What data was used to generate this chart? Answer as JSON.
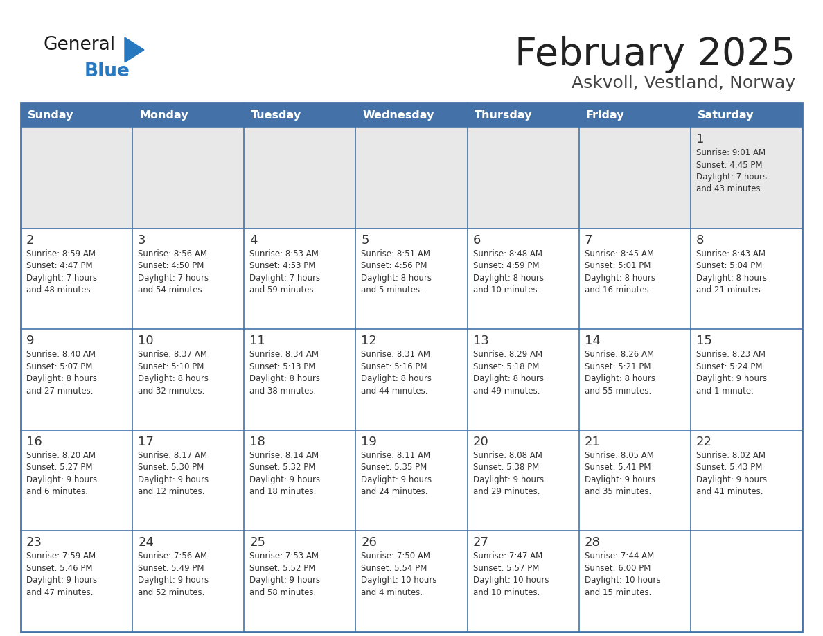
{
  "title": "February 2025",
  "subtitle": "Askvoll, Vestland, Norway",
  "days_of_week": [
    "Sunday",
    "Monday",
    "Tuesday",
    "Wednesday",
    "Thursday",
    "Friday",
    "Saturday"
  ],
  "header_bg": "#4472a8",
  "header_text": "#ffffff",
  "cell_bg_week1": "#e8e8e8",
  "cell_bg": "#ffffff",
  "cell_border": "#4472a8",
  "day_number_color": "#333333",
  "info_text_color": "#333333",
  "title_color": "#222222",
  "subtitle_color": "#444444",
  "logo_general_color": "#1a1a1a",
  "logo_blue_color": "#2878c0",
  "weeks": [
    [
      {
        "day": null,
        "info": ""
      },
      {
        "day": null,
        "info": ""
      },
      {
        "day": null,
        "info": ""
      },
      {
        "day": null,
        "info": ""
      },
      {
        "day": null,
        "info": ""
      },
      {
        "day": null,
        "info": ""
      },
      {
        "day": 1,
        "info": "Sunrise: 9:01 AM\nSunset: 4:45 PM\nDaylight: 7 hours\nand 43 minutes."
      }
    ],
    [
      {
        "day": 2,
        "info": "Sunrise: 8:59 AM\nSunset: 4:47 PM\nDaylight: 7 hours\nand 48 minutes."
      },
      {
        "day": 3,
        "info": "Sunrise: 8:56 AM\nSunset: 4:50 PM\nDaylight: 7 hours\nand 54 minutes."
      },
      {
        "day": 4,
        "info": "Sunrise: 8:53 AM\nSunset: 4:53 PM\nDaylight: 7 hours\nand 59 minutes."
      },
      {
        "day": 5,
        "info": "Sunrise: 8:51 AM\nSunset: 4:56 PM\nDaylight: 8 hours\nand 5 minutes."
      },
      {
        "day": 6,
        "info": "Sunrise: 8:48 AM\nSunset: 4:59 PM\nDaylight: 8 hours\nand 10 minutes."
      },
      {
        "day": 7,
        "info": "Sunrise: 8:45 AM\nSunset: 5:01 PM\nDaylight: 8 hours\nand 16 minutes."
      },
      {
        "day": 8,
        "info": "Sunrise: 8:43 AM\nSunset: 5:04 PM\nDaylight: 8 hours\nand 21 minutes."
      }
    ],
    [
      {
        "day": 9,
        "info": "Sunrise: 8:40 AM\nSunset: 5:07 PM\nDaylight: 8 hours\nand 27 minutes."
      },
      {
        "day": 10,
        "info": "Sunrise: 8:37 AM\nSunset: 5:10 PM\nDaylight: 8 hours\nand 32 minutes."
      },
      {
        "day": 11,
        "info": "Sunrise: 8:34 AM\nSunset: 5:13 PM\nDaylight: 8 hours\nand 38 minutes."
      },
      {
        "day": 12,
        "info": "Sunrise: 8:31 AM\nSunset: 5:16 PM\nDaylight: 8 hours\nand 44 minutes."
      },
      {
        "day": 13,
        "info": "Sunrise: 8:29 AM\nSunset: 5:18 PM\nDaylight: 8 hours\nand 49 minutes."
      },
      {
        "day": 14,
        "info": "Sunrise: 8:26 AM\nSunset: 5:21 PM\nDaylight: 8 hours\nand 55 minutes."
      },
      {
        "day": 15,
        "info": "Sunrise: 8:23 AM\nSunset: 5:24 PM\nDaylight: 9 hours\nand 1 minute."
      }
    ],
    [
      {
        "day": 16,
        "info": "Sunrise: 8:20 AM\nSunset: 5:27 PM\nDaylight: 9 hours\nand 6 minutes."
      },
      {
        "day": 17,
        "info": "Sunrise: 8:17 AM\nSunset: 5:30 PM\nDaylight: 9 hours\nand 12 minutes."
      },
      {
        "day": 18,
        "info": "Sunrise: 8:14 AM\nSunset: 5:32 PM\nDaylight: 9 hours\nand 18 minutes."
      },
      {
        "day": 19,
        "info": "Sunrise: 8:11 AM\nSunset: 5:35 PM\nDaylight: 9 hours\nand 24 minutes."
      },
      {
        "day": 20,
        "info": "Sunrise: 8:08 AM\nSunset: 5:38 PM\nDaylight: 9 hours\nand 29 minutes."
      },
      {
        "day": 21,
        "info": "Sunrise: 8:05 AM\nSunset: 5:41 PM\nDaylight: 9 hours\nand 35 minutes."
      },
      {
        "day": 22,
        "info": "Sunrise: 8:02 AM\nSunset: 5:43 PM\nDaylight: 9 hours\nand 41 minutes."
      }
    ],
    [
      {
        "day": 23,
        "info": "Sunrise: 7:59 AM\nSunset: 5:46 PM\nDaylight: 9 hours\nand 47 minutes."
      },
      {
        "day": 24,
        "info": "Sunrise: 7:56 AM\nSunset: 5:49 PM\nDaylight: 9 hours\nand 52 minutes."
      },
      {
        "day": 25,
        "info": "Sunrise: 7:53 AM\nSunset: 5:52 PM\nDaylight: 9 hours\nand 58 minutes."
      },
      {
        "day": 26,
        "info": "Sunrise: 7:50 AM\nSunset: 5:54 PM\nDaylight: 10 hours\nand 4 minutes."
      },
      {
        "day": 27,
        "info": "Sunrise: 7:47 AM\nSunset: 5:57 PM\nDaylight: 10 hours\nand 10 minutes."
      },
      {
        "day": 28,
        "info": "Sunrise: 7:44 AM\nSunset: 6:00 PM\nDaylight: 10 hours\nand 15 minutes."
      },
      {
        "day": null,
        "info": ""
      }
    ]
  ]
}
